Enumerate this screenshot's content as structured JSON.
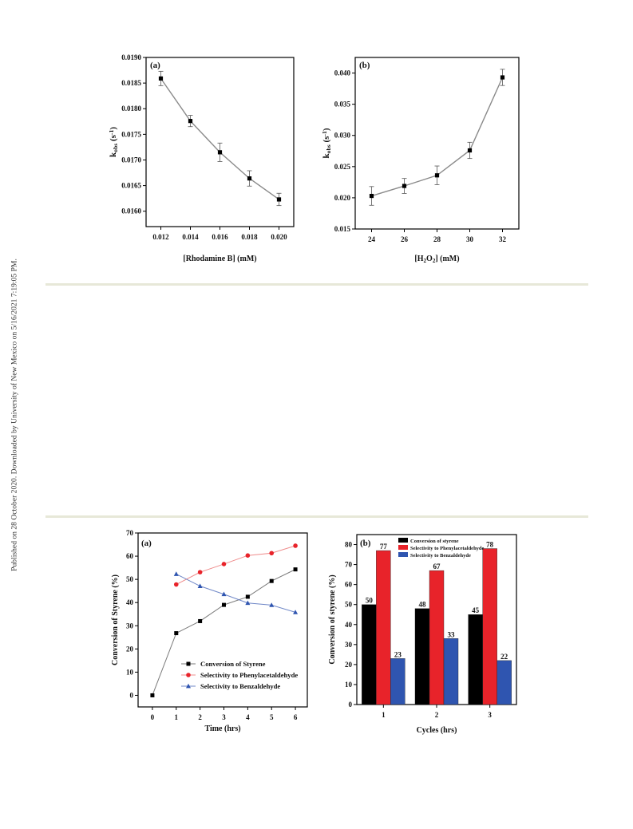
{
  "side_note": "Published on 28 October 2020. Downloaded by University of New Mexico on 5/16/2021 7:19:05 PM.",
  "colors": {
    "divider": "#e7e8d8",
    "line_gray": "#8a8a8a",
    "black": "#000000",
    "red": "#e8232a",
    "blue": "#2f55b0",
    "blue_line": "#6f87c7",
    "red_line": "#ef8c8c"
  },
  "chart_data": [
    {
      "id": "a-top",
      "type": "line",
      "panel_label": "(a)",
      "xlabel": "[Rhodamine B] (mM)",
      "ylabel_main": "k",
      "ylabel_sub": "obs",
      "ylabel_unit": " (s",
      "ylabel_sup": "-1",
      "ylabel_close": ")",
      "xlim": [
        0.011,
        0.021
      ],
      "ylim": [
        0.0157,
        0.019
      ],
      "xticks": [
        "0.012",
        "0.014",
        "0.016",
        "0.018",
        "0.020"
      ],
      "yticks": [
        "0.0160",
        "0.0165",
        "0.0170",
        "0.0175",
        "0.0180",
        "0.0185",
        "0.0190"
      ],
      "x": [
        0.012,
        0.014,
        0.016,
        0.018,
        0.02
      ],
      "y": [
        0.01859,
        0.01776,
        0.01715,
        0.01664,
        0.01623
      ],
      "error": [
        0.00014,
        0.00011,
        0.00018,
        0.00015,
        0.00012
      ],
      "marker": "square"
    },
    {
      "id": "b-top",
      "type": "line",
      "panel_label": "(b)",
      "xlabel_main": "[H",
      "xlabel_sub1": "2",
      "xlabel_mid": "O",
      "xlabel_sub2": "2",
      "xlabel_end": "] (mM)",
      "ylabel_main": "k",
      "ylabel_sub": "obs",
      "ylabel_unit": " (s",
      "ylabel_sup": "-1",
      "ylabel_close": ")",
      "xlim": [
        23,
        33
      ],
      "ylim": [
        0.015,
        0.0425
      ],
      "xticks": [
        "24",
        "26",
        "28",
        "30",
        "32"
      ],
      "yticks": [
        "0.015",
        "0.020",
        "0.025",
        "0.030",
        "0.035",
        "0.040"
      ],
      "x": [
        24,
        26,
        28,
        30,
        32
      ],
      "y": [
        0.0203,
        0.0219,
        0.0236,
        0.0276,
        0.0393
      ],
      "error": [
        0.0015,
        0.0012,
        0.0015,
        0.0013,
        0.0013
      ],
      "marker": "square"
    },
    {
      "id": "a-bottom",
      "type": "line",
      "panel_label": "(a)",
      "xlabel": "Time (hrs)",
      "ylabel": "Conversion of Styrene (%)",
      "xlim": [
        -0.6,
        6.5
      ],
      "ylim": [
        -5,
        70
      ],
      "xticks": [
        "0",
        "1",
        "2",
        "3",
        "4",
        "5",
        "6"
      ],
      "yticks": [
        "0",
        "10",
        "20",
        "30",
        "40",
        "50",
        "60",
        "70"
      ],
      "series": [
        {
          "name": "Conversion of Styrene",
          "x": [
            0,
            1,
            2,
            3,
            4,
            5,
            6
          ],
          "y": [
            0,
            26.8,
            32.0,
            39.0,
            42.5,
            49.3,
            54.3
          ],
          "marker": "square"
        },
        {
          "name": "Selectivity to Phenylacetaldehyde",
          "x": [
            1,
            2,
            3,
            4,
            5,
            6
          ],
          "y": [
            47.8,
            53.1,
            56.6,
            60.3,
            61.3,
            64.5
          ],
          "marker": "circle"
        },
        {
          "name": "Selectivity to Benzaldehyde",
          "x": [
            1,
            2,
            3,
            4,
            5,
            6
          ],
          "y": [
            52.3,
            47.1,
            43.6,
            39.8,
            38.9,
            35.8
          ],
          "marker": "triangle"
        }
      ],
      "legend_position": "bottom-right"
    },
    {
      "id": "b-bottom",
      "type": "bar",
      "panel_label": "(b)",
      "xlabel": "Cycles (hrs)",
      "ylabel": "Conversion of styrene (%)",
      "ylim": [
        0,
        85
      ],
      "categories": [
        "1",
        "2",
        "3"
      ],
      "yticks": [
        "0",
        "10",
        "20",
        "30",
        "40",
        "50",
        "60",
        "70",
        "80"
      ],
      "series": [
        {
          "name": "Conversion of styrene",
          "values": [
            50,
            48,
            45
          ],
          "labels": [
            "50",
            "48",
            "45"
          ]
        },
        {
          "name": "Selectivity to Phenylacetaldehyde",
          "values": [
            77,
            67,
            78
          ],
          "labels": [
            "77",
            "67",
            "78"
          ]
        },
        {
          "name": "Selectivity to Benzaldehyde",
          "values": [
            23,
            33,
            22
          ],
          "labels": [
            "23",
            "33",
            "22"
          ]
        }
      ],
      "legend_position": "top-left"
    }
  ]
}
